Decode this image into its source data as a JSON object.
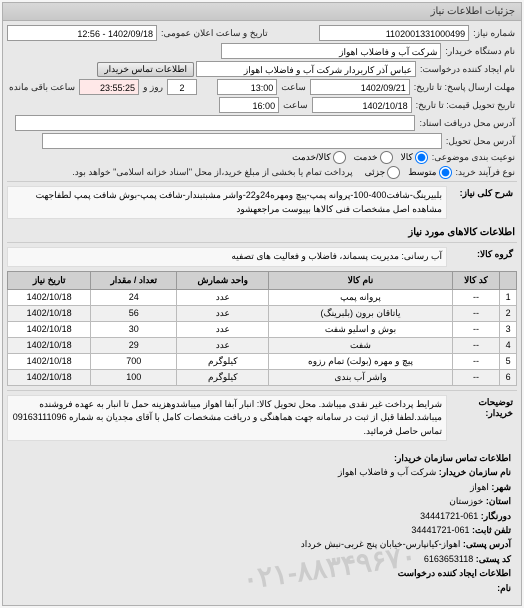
{
  "panel_title": "جزئیات اطلاعات نیاز",
  "top": {
    "req_number_label": "شماره نیاز:",
    "req_number": "1102001331000499",
    "announce_label": "تاریخ و ساعت اعلان عمومی:",
    "announce_value": "1402/09/18 - 12:56",
    "buyer_name_label": "نام دستگاه خریدار:",
    "buyer_name": "شرکت آب و فاضلاب اهواز",
    "requester_label": "نام ایجاد کننده درخواست:",
    "requester": "عباس آذر کاربردار شرکت آب و فاضلاب اهواز",
    "contact_btn": "اطلاعات تماس خریدار",
    "send_deadline_label": "مهلت ارسال پاسخ: تا تاریخ:",
    "send_date": "1402/09/21",
    "time_label": "ساعت",
    "send_time": "13:00",
    "days_and": "و",
    "days_value": "2",
    "days_label": "روز و",
    "remain_time": "23:55:25",
    "remain_label": "ساعت باقی مانده",
    "delivery_label": "تاریخ تحویل قیمت: تا تاریخ:",
    "delivery_date": "1402/10/18",
    "delivery_time": "16:00",
    "receipt_address_label": "آدرس محل دریافت اسناد:",
    "delivery_place_label": "آدرس محل تحویل:",
    "budget_type_label": "نوعیت بندی موضوعی:",
    "budget_opts": {
      "goods": "کالا",
      "service": "خدمت",
      "both": "کالا/خدمت"
    },
    "process_label": "نوع فرآیند خرید:",
    "process_opts": {
      "mid": "متوسط",
      "low": "جزئی"
    },
    "process_note": "پرداخت تمام یا بخشی از مبلغ خرید،از محل \"اسناد خزانه اسلامی\" خواهد بود."
  },
  "desc": {
    "label": "شرح کلی نیاز:",
    "text": "بلبیرینگ-شافت400-100-پروانه پمپ-پیچ ومهره24و22-واشر مشبتبندار-شافت پمپ-بوش شافت پمپ لطفاجهت مشاهده اصل مشخصات فنی کالاها بپیوست مراجعهشود"
  },
  "goods_header": "اطلاعات کالاهای مورد نیاز",
  "group": {
    "label": "گروه کالا:",
    "text": "آب رسانی: مدیریت پسماند، فاضلاب و فعالیت های تصفیه"
  },
  "table": {
    "headers": [
      "",
      "کد کالا",
      "نام کالا",
      "واحد شمارش",
      "تعداد / مقدار",
      "تاریخ نیاز"
    ],
    "rows": [
      [
        "1",
        "--",
        "پروانه پمپ",
        "عدد",
        "24",
        "1402/10/18"
      ],
      [
        "2",
        "--",
        "یاتاقان برون (بلبرینگ)",
        "عدد",
        "56",
        "1402/10/18"
      ],
      [
        "3",
        "--",
        "بوش و اسلیو شفت",
        "عدد",
        "30",
        "1402/10/18"
      ],
      [
        "4",
        "--",
        "شفت",
        "عدد",
        "29",
        "1402/10/18"
      ],
      [
        "5",
        "--",
        "پیچ و مهره (بولت) تمام رزوه",
        "کیلوگرم",
        "700",
        "1402/10/18"
      ],
      [
        "6",
        "--",
        "واشر آب بندی",
        "کیلوگرم",
        "100",
        "1402/10/18"
      ]
    ]
  },
  "conditions": {
    "label": "توضیحات خریدار:",
    "text": "شرایط پرداخت غیر نقدی میباشد. محل تحویل کالا: انبار آبفا اهواز میباشدوهزینه حمل تا انبار به عهده فروشنده میباشد.لطفا قبل از ثبت در سامانه جهت هماهنگی و دریافت مشخصات کامل با آقای مجدیان به شماره 09163111096 تماس حاصل فرمائید."
  },
  "footer": {
    "header": "اطلاعات تماس سازمان خریدار:",
    "org_label": "نام سازمان خریدار:",
    "org": "شرکت آب و فاضلاب اهواز",
    "city_label": "شهر:",
    "city": "اهواز",
    "province_label": "استان:",
    "province": "خوزستان",
    "fax_label": "دورنگار:",
    "fax": "061-34441721",
    "tel_label": "تلفن ثابت:",
    "tel": "061-34441721",
    "address_label": "آدرس پستی:",
    "address": "اهواز-کیانپارس-خیابان پنج غربی-نبش خرداد",
    "postal_label": "کد پستی:",
    "postal": "6163653118",
    "doc_create_label": "اطلاعات ایجاد کننده درخواست",
    "name_label": "نام:"
  },
  "watermark": "۰۲۱-۸۸۳۴۹۶۷۰"
}
